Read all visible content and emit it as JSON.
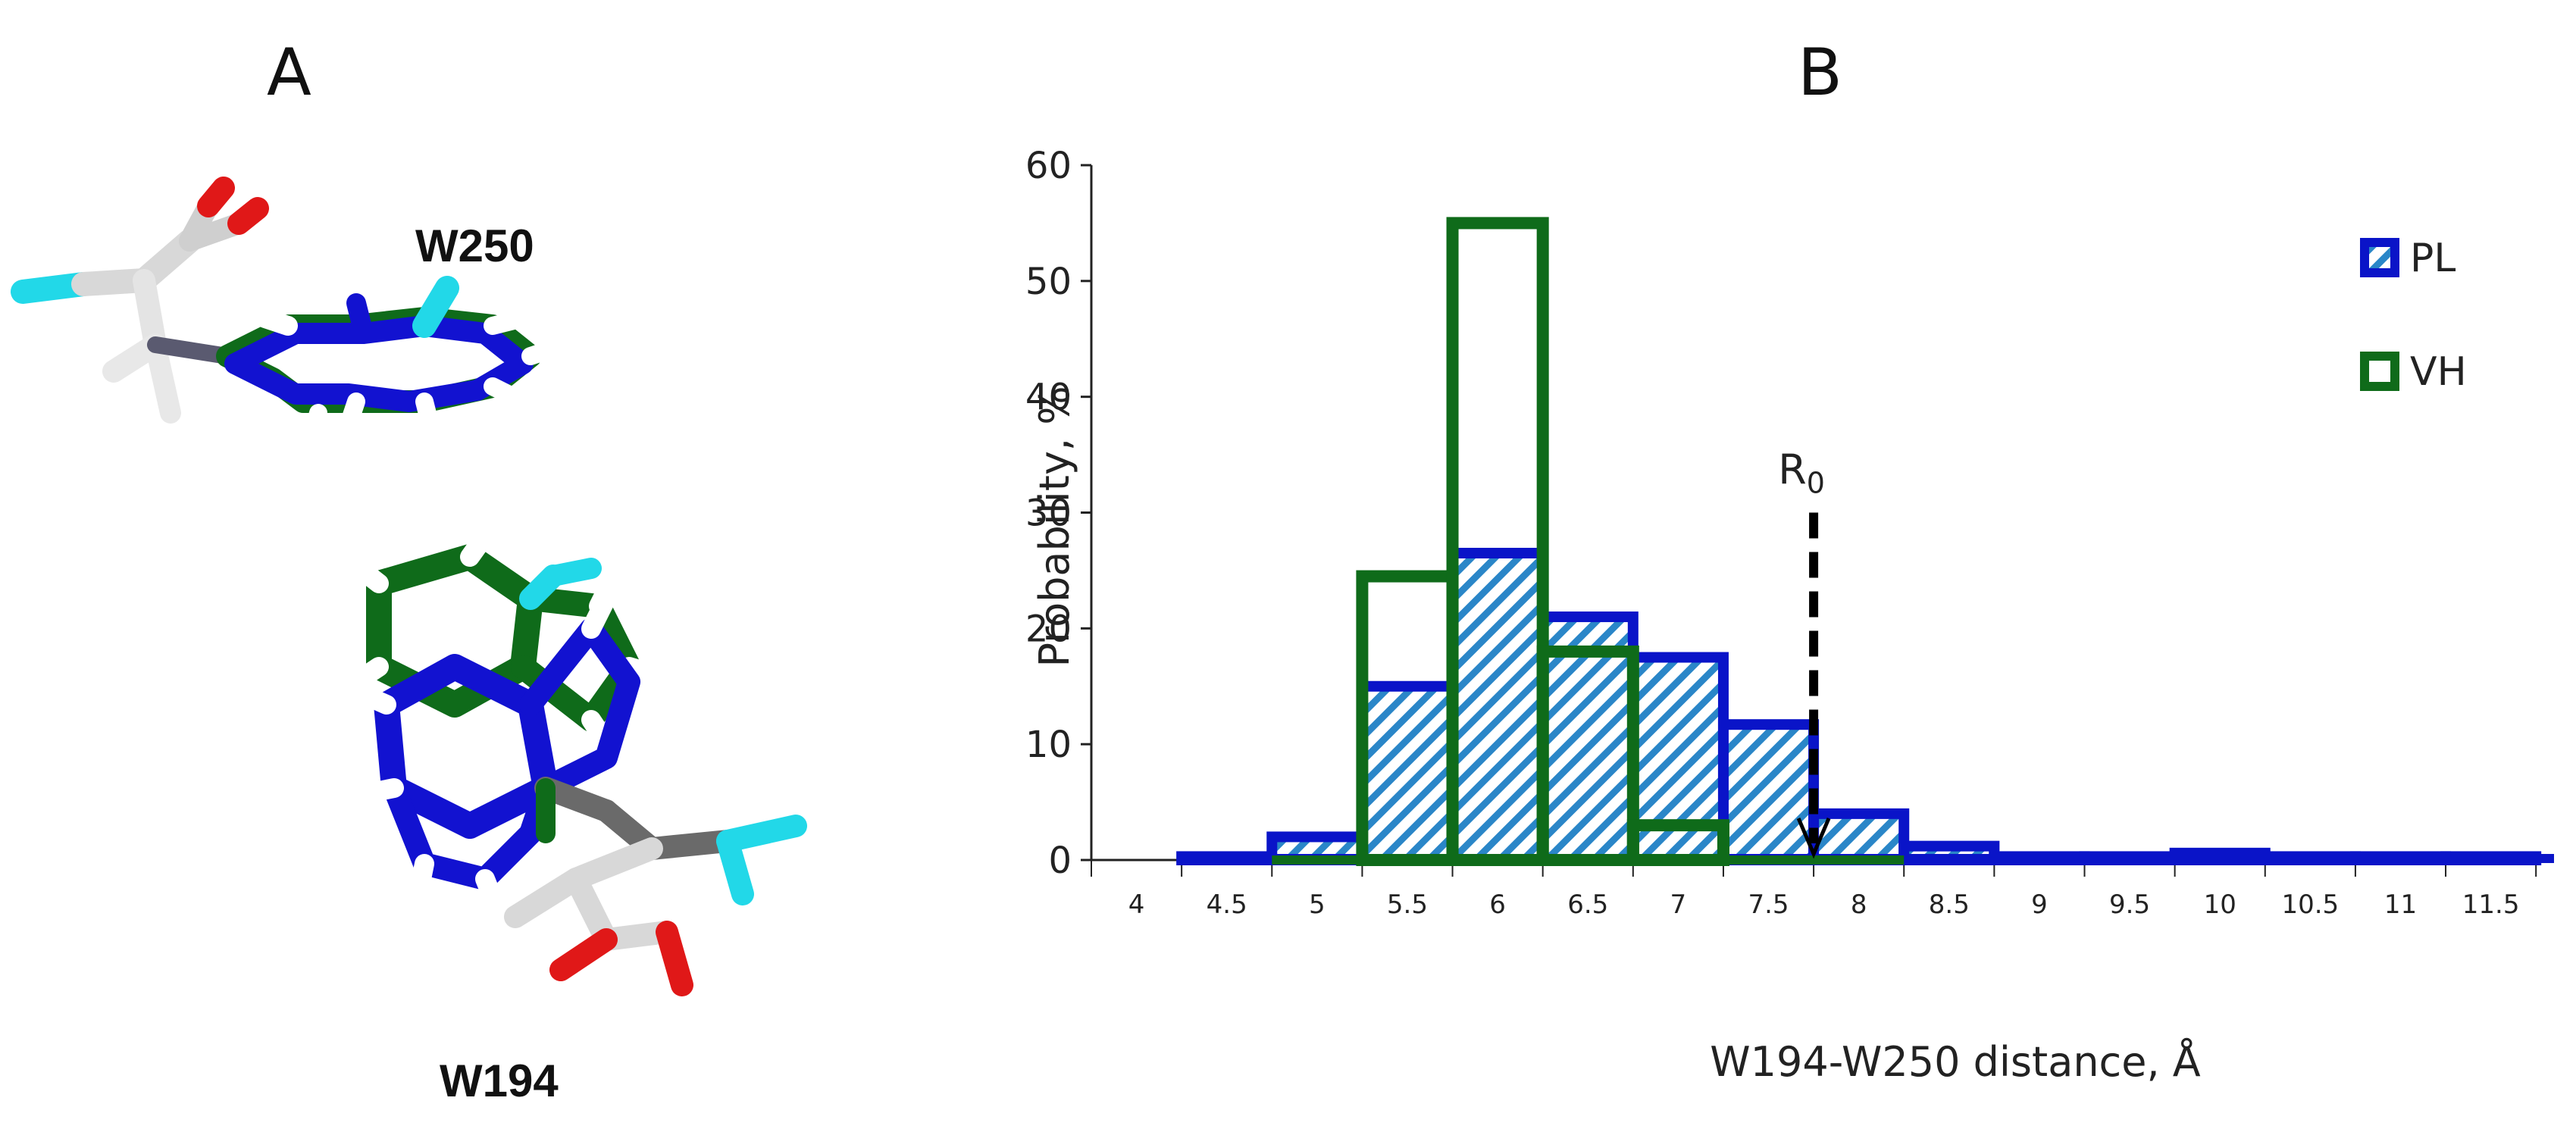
{
  "panels": {
    "a_label": "A",
    "b_label": "B"
  },
  "molecule": {
    "residue_top": "W250",
    "residue_bottom": "W194"
  },
  "colors": {
    "pl": "#0a14c8",
    "vh": "#0f6b1a",
    "hatch": "#2a86c8",
    "ro_arrow": "#000000"
  },
  "chart_data": {
    "type": "bar",
    "x_tick_labels": [
      "4",
      "4.5",
      "5",
      "5.5",
      "6",
      "6.5",
      "7",
      "7.5",
      "8",
      "8.5",
      "9",
      "9.5",
      "10",
      "10.5",
      "11",
      "11.5"
    ],
    "bin_centers": [
      4.5,
      5,
      5.5,
      6,
      6.5,
      7,
      7.5,
      8,
      8.5,
      9,
      9.5,
      10,
      10.5,
      11,
      11.5
    ],
    "series": [
      {
        "name": "PL",
        "style": "hatched",
        "values": [
          0.3,
          2,
          15,
          26.5,
          21,
          17.5,
          11.7,
          4,
          1.2,
          0.3,
          0.3,
          0.6,
          0.3,
          0.3,
          0.3
        ]
      },
      {
        "name": "VH",
        "style": "open",
        "values": [
          0,
          0,
          24.5,
          55,
          18,
          3,
          0,
          0,
          0,
          0,
          0,
          0,
          0,
          0,
          0
        ]
      }
    ],
    "ylabel": "Probability, %",
    "xlabel": "W194-W250 distance, Å",
    "ylim": [
      0,
      60
    ],
    "xlim": [
      3.75,
      11.85
    ],
    "y_ticks": [
      0,
      10,
      20,
      30,
      40,
      50,
      60
    ],
    "annotation": {
      "label_main": "R",
      "label_sub": "0",
      "x": 7.75,
      "y_top": 30,
      "y_bottom": 0
    },
    "legend_position": "top-right"
  }
}
